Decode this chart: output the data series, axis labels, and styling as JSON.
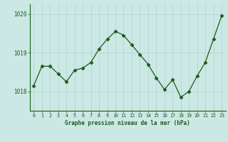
{
  "x": [
    0,
    1,
    2,
    3,
    4,
    5,
    6,
    7,
    8,
    9,
    10,
    11,
    12,
    13,
    14,
    15,
    16,
    17,
    18,
    19,
    20,
    21,
    22,
    23
  ],
  "y": [
    1018.15,
    1018.65,
    1018.65,
    1018.45,
    1018.25,
    1018.55,
    1018.6,
    1018.75,
    1019.1,
    1019.35,
    1019.55,
    1019.45,
    1019.2,
    1018.95,
    1018.7,
    1018.35,
    1018.05,
    1018.3,
    1017.85,
    1018.0,
    1018.4,
    1018.75,
    1019.35,
    1019.95
  ],
  "yticks": [
    1018,
    1019,
    1020
  ],
  "xticks": [
    0,
    1,
    2,
    3,
    4,
    5,
    6,
    7,
    8,
    9,
    10,
    11,
    12,
    13,
    14,
    15,
    16,
    17,
    18,
    19,
    20,
    21,
    22,
    23
  ],
  "xlabel": "Graphe pression niveau de la mer (hPa)",
  "line_color": "#1a5c1a",
  "marker": "D",
  "bg_plot": "#cce8e5",
  "bg_fig": "#cce8e5",
  "grid_color": "#aacccc",
  "text_color": "#1a5c1a",
  "ylim": [
    1017.5,
    1020.25
  ],
  "xlim": [
    -0.5,
    23.5
  ]
}
